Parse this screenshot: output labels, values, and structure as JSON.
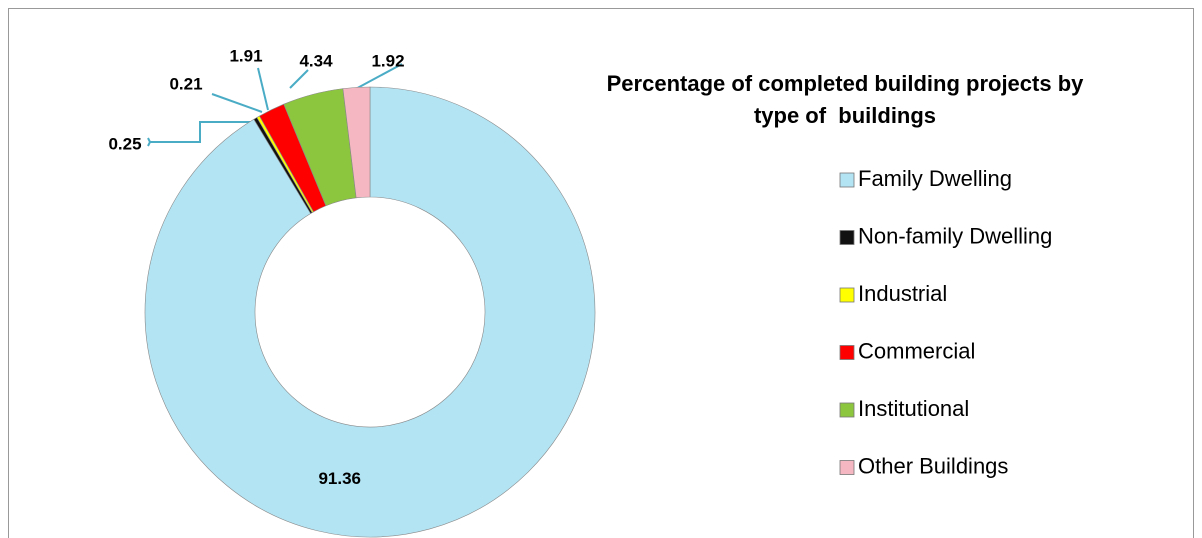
{
  "chart_data": {
    "type": "donut",
    "title": "Percentage of completed building projects by type of  buildings",
    "categories": [
      "Family Dwelling",
      "Non-family Dwelling",
      "Industrial",
      "Commercial",
      "Institutional",
      "Other Buildings"
    ],
    "values": [
      91.36,
      0.25,
      0.21,
      1.91,
      4.34,
      1.92
    ],
    "colors": [
      "#b3e4f4",
      "#111111",
      "#ffff00",
      "#ff0000",
      "#8cc63f",
      "#f5b8c2"
    ],
    "legend": "right"
  }
}
